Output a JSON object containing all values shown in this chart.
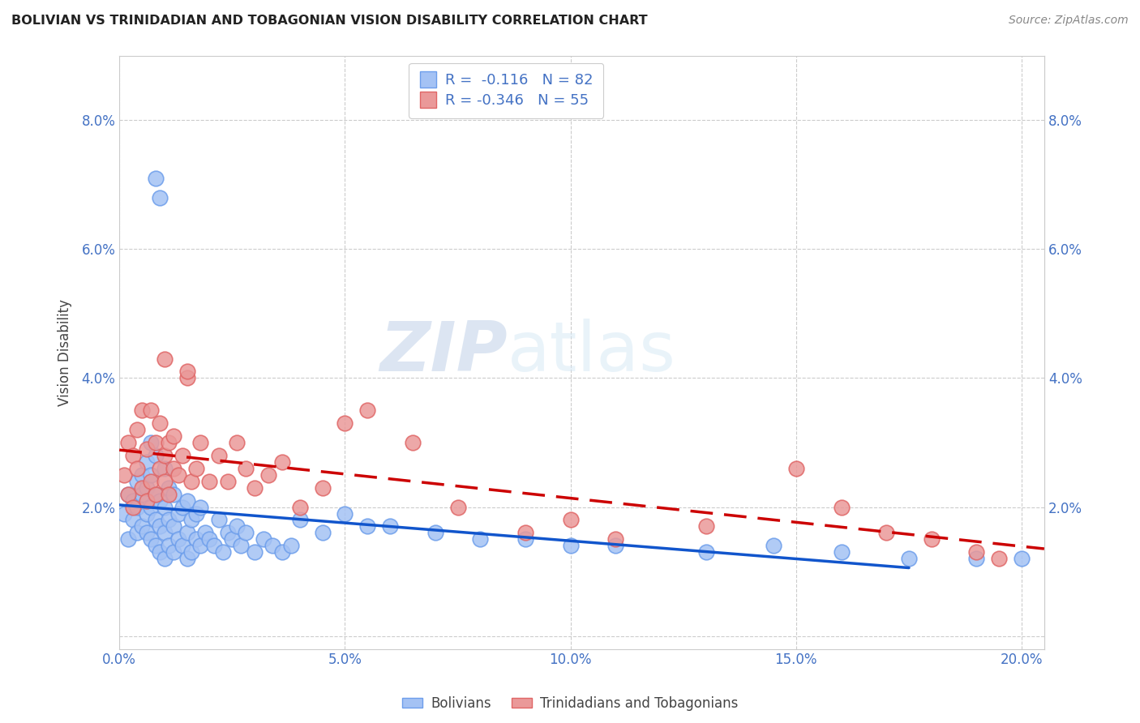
{
  "title": "BOLIVIAN VS TRINIDADIAN AND TOBAGONIAN VISION DISABILITY CORRELATION CHART",
  "source": "Source: ZipAtlas.com",
  "ylabel": "Vision Disability",
  "xlim": [
    0.0,
    0.205
  ],
  "ylim": [
    -0.002,
    0.09
  ],
  "xticks": [
    0.0,
    0.05,
    0.1,
    0.15,
    0.2
  ],
  "yticks": [
    0.0,
    0.02,
    0.04,
    0.06,
    0.08
  ],
  "xticklabels": [
    "0.0%",
    "5.0%",
    "10.0%",
    "15.0%",
    "20.0%"
  ],
  "yticklabels_left": [
    "",
    "2.0%",
    "4.0%",
    "6.0%",
    "8.0%"
  ],
  "yticklabels_right": [
    "",
    "2.0%",
    "4.0%",
    "6.0%",
    "8.0%"
  ],
  "blue_color": "#a4c2f4",
  "blue_edge_color": "#6d9eeb",
  "pink_color": "#ea9999",
  "pink_edge_color": "#e06666",
  "blue_line_color": "#1155cc",
  "pink_line_color": "#cc0000",
  "r_blue": -0.116,
  "n_blue": 82,
  "r_pink": -0.346,
  "n_pink": 55,
  "legend_label_blue": "Bolivians",
  "legend_label_pink": "Trinidadians and Tobagonians",
  "watermark_zip": "ZIP",
  "watermark_atlas": "atlas",
  "blue_scatter_x": [
    0.001,
    0.002,
    0.002,
    0.003,
    0.003,
    0.004,
    0.004,
    0.004,
    0.005,
    0.005,
    0.005,
    0.006,
    0.006,
    0.006,
    0.006,
    0.007,
    0.007,
    0.007,
    0.007,
    0.008,
    0.008,
    0.008,
    0.008,
    0.009,
    0.009,
    0.009,
    0.01,
    0.01,
    0.01,
    0.01,
    0.011,
    0.011,
    0.011,
    0.012,
    0.012,
    0.012,
    0.013,
    0.013,
    0.014,
    0.014,
    0.015,
    0.015,
    0.015,
    0.016,
    0.016,
    0.017,
    0.017,
    0.018,
    0.018,
    0.019,
    0.02,
    0.021,
    0.022,
    0.023,
    0.024,
    0.025,
    0.026,
    0.027,
    0.028,
    0.03,
    0.032,
    0.034,
    0.036,
    0.038,
    0.04,
    0.045,
    0.05,
    0.055,
    0.06,
    0.07,
    0.08,
    0.09,
    0.1,
    0.11,
    0.13,
    0.145,
    0.16,
    0.175,
    0.19,
    0.2,
    0.008,
    0.009
  ],
  "blue_scatter_y": [
    0.019,
    0.015,
    0.022,
    0.018,
    0.021,
    0.016,
    0.02,
    0.024,
    0.017,
    0.022,
    0.025,
    0.016,
    0.019,
    0.023,
    0.027,
    0.015,
    0.02,
    0.025,
    0.03,
    0.014,
    0.018,
    0.022,
    0.028,
    0.013,
    0.017,
    0.021,
    0.012,
    0.016,
    0.02,
    0.026,
    0.014,
    0.018,
    0.023,
    0.013,
    0.017,
    0.022,
    0.015,
    0.019,
    0.014,
    0.02,
    0.012,
    0.016,
    0.021,
    0.013,
    0.018,
    0.015,
    0.019,
    0.014,
    0.02,
    0.016,
    0.015,
    0.014,
    0.018,
    0.013,
    0.016,
    0.015,
    0.017,
    0.014,
    0.016,
    0.013,
    0.015,
    0.014,
    0.013,
    0.014,
    0.018,
    0.016,
    0.019,
    0.017,
    0.017,
    0.016,
    0.015,
    0.015,
    0.014,
    0.014,
    0.013,
    0.014,
    0.013,
    0.012,
    0.012,
    0.012,
    0.071,
    0.068
  ],
  "pink_scatter_x": [
    0.001,
    0.002,
    0.002,
    0.003,
    0.003,
    0.004,
    0.004,
    0.005,
    0.005,
    0.006,
    0.006,
    0.007,
    0.007,
    0.008,
    0.008,
    0.009,
    0.009,
    0.01,
    0.01,
    0.011,
    0.011,
    0.012,
    0.012,
    0.013,
    0.014,
    0.015,
    0.016,
    0.017,
    0.018,
    0.02,
    0.022,
    0.024,
    0.026,
    0.028,
    0.03,
    0.033,
    0.036,
    0.04,
    0.045,
    0.05,
    0.055,
    0.065,
    0.075,
    0.09,
    0.1,
    0.11,
    0.13,
    0.15,
    0.16,
    0.17,
    0.18,
    0.19,
    0.195,
    0.01,
    0.015
  ],
  "pink_scatter_y": [
    0.025,
    0.022,
    0.03,
    0.02,
    0.028,
    0.026,
    0.032,
    0.023,
    0.035,
    0.021,
    0.029,
    0.024,
    0.035,
    0.022,
    0.03,
    0.026,
    0.033,
    0.024,
    0.028,
    0.022,
    0.03,
    0.026,
    0.031,
    0.025,
    0.028,
    0.04,
    0.024,
    0.026,
    0.03,
    0.024,
    0.028,
    0.024,
    0.03,
    0.026,
    0.023,
    0.025,
    0.027,
    0.02,
    0.023,
    0.033,
    0.035,
    0.03,
    0.02,
    0.016,
    0.018,
    0.015,
    0.017,
    0.026,
    0.02,
    0.016,
    0.015,
    0.013,
    0.012,
    0.043,
    0.041
  ]
}
